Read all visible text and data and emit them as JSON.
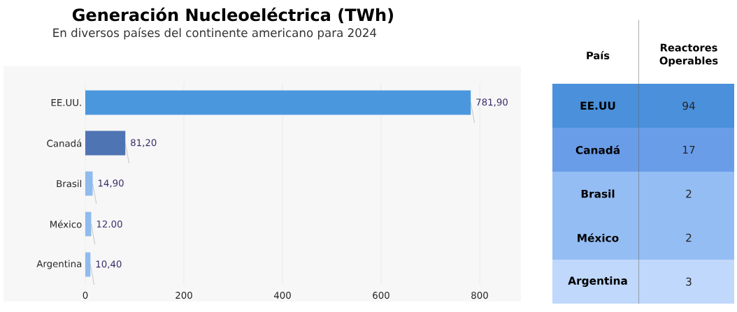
{
  "chart_data": [
    {
      "type": "bar",
      "orientation": "horizontal",
      "title": "Generación Nucleoeléctrica (TWh)",
      "subtitle": "En diversos países del continente americano para 2024",
      "categories": [
        "EE.UU.",
        "Canadá",
        "Brasil",
        "México",
        "Argentina"
      ],
      "values": [
        781.9,
        81.2,
        14.9,
        12.0,
        10.4
      ],
      "value_labels": [
        "781,90",
        "81,20",
        "14,90",
        "12.00",
        "10,40"
      ],
      "colors": [
        "#4a97de",
        "#4f74b3",
        "#8fbbee",
        "#8fbbee",
        "#8fbbee"
      ],
      "xlim": [
        0,
        800
      ],
      "xticks": [
        0,
        200,
        400,
        600,
        800
      ],
      "grid": "x"
    },
    {
      "type": "other",
      "ylabel": "País",
      "xlabel": "Reactores Operables",
      "categories": [
        "EE.UU",
        "Canadá",
        "Brasil",
        "México",
        "Argentina"
      ],
      "values": [
        94,
        17,
        2,
        2,
        3
      ],
      "value_labels": [
        "94",
        "17",
        "2",
        "2",
        "3"
      ],
      "colors": [
        "#4a90db",
        "#6a9de8",
        "#94bdf3",
        "#94bdf3",
        "#c0d8fb"
      ]
    }
  ]
}
